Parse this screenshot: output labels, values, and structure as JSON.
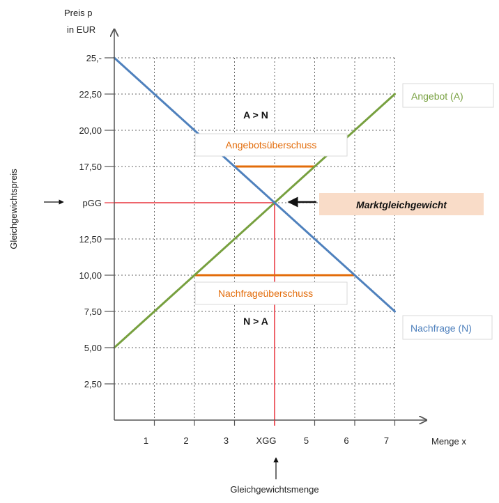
{
  "chart_data": {
    "type": "line",
    "title": "",
    "xlabel": "Menge x",
    "ylabel_top": "Preis p",
    "ylabel_unit": "in EUR",
    "ylabel_side": "Gleichgewichtspreis",
    "xlabel_bottom": "Gleichgewichtsmenge",
    "xlim": [
      0,
      7
    ],
    "ylim": [
      0,
      25
    ],
    "grid": true,
    "x_ticks": [
      {
        "value": 1,
        "label": "1"
      },
      {
        "value": 2,
        "label": "2"
      },
      {
        "value": 3,
        "label": "3"
      },
      {
        "value": 4,
        "label": "XGG",
        "highlight": true
      },
      {
        "value": 5,
        "label": "5"
      },
      {
        "value": 6,
        "label": "6"
      },
      {
        "value": 7,
        "label": "7"
      }
    ],
    "y_ticks": [
      {
        "value": 2.5,
        "label": "2,50"
      },
      {
        "value": 5,
        "label": "5,00"
      },
      {
        "value": 7.5,
        "label": "7,50"
      },
      {
        "value": 10,
        "label": "10,00"
      },
      {
        "value": 12.5,
        "label": "12,50"
      },
      {
        "value": 15,
        "label": "pGG",
        "highlight": true
      },
      {
        "value": 17.5,
        "label": "17,50"
      },
      {
        "value": 20,
        "label": "20,00"
      },
      {
        "value": 22.5,
        "label": "22,50"
      },
      {
        "value": 25,
        "label": "25,-"
      }
    ],
    "series": [
      {
        "name": "Angebot (A)",
        "color": "#77a03f",
        "points": [
          [
            0,
            5
          ],
          [
            7,
            22.5
          ]
        ]
      },
      {
        "name": "Nachfrage (N)",
        "color": "#4f81bd",
        "points": [
          [
            0,
            25
          ],
          [
            7,
            7.5
          ]
        ]
      }
    ],
    "equilibrium": {
      "x": 4,
      "y": 15,
      "label": "Marktgleichgewicht",
      "color": "#e8323c"
    },
    "surplus_lines": [
      {
        "label": "Angebotsüberschuss",
        "y": 17.5,
        "x_from": 3,
        "x_to": 5,
        "note": "A > N"
      },
      {
        "label": "Nachfrageüberschuss",
        "y": 10,
        "x_from": 2,
        "x_to": 6,
        "note": "N > A"
      }
    ],
    "colors": {
      "supply": "#77a03f",
      "demand": "#4f81bd",
      "equilibrium": "#e8323c",
      "surplus": "#e36c0a",
      "highlight_box": "#f9dcc8",
      "grid": "#666666",
      "axis": "#555555"
    }
  }
}
